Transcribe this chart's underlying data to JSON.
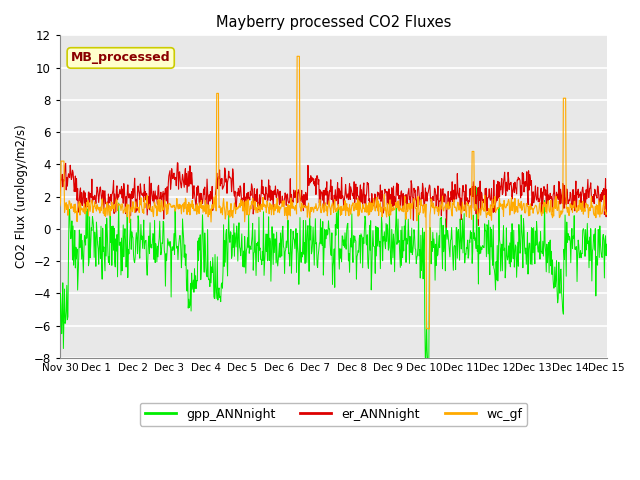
{
  "title": "Mayberry processed CO2 Fluxes",
  "xlabel": "",
  "ylabel": "CO2 Flux (urology/m2/s)",
  "ylim": [
    -8,
    12
  ],
  "yticks": [
    -8,
    -6,
    -4,
    -2,
    0,
    2,
    4,
    6,
    8,
    10,
    12
  ],
  "plot_bg_color": "#e8e8e8",
  "fig_bg_color": "#ffffff",
  "grid_color": "#ffffff",
  "series": {
    "gpp_ANNnight": {
      "color": "#00ee00",
      "label": "gpp_ANNnight"
    },
    "er_ANNnight": {
      "color": "#dd0000",
      "label": "er_ANNnight"
    },
    "wc_gf": {
      "color": "#ffaa00",
      "label": "wc_gf"
    }
  },
  "xtick_labels": [
    "Nov 30",
    "Dec 1",
    "Dec 2",
    "Dec 3",
    "Dec 4",
    "Dec 5",
    "Dec 6",
    "Dec 7",
    "Dec 8",
    "Dec 9",
    "Dec 10",
    "Dec 11",
    "Dec 12",
    "Dec 13",
    "Dec 14",
    "Dec 15"
  ],
  "n_points": 960,
  "annotation_text": "MB_processed",
  "annotation_color": "#8b0000",
  "annotation_bg": "#ffffcc",
  "annotation_edge": "#cccc00"
}
